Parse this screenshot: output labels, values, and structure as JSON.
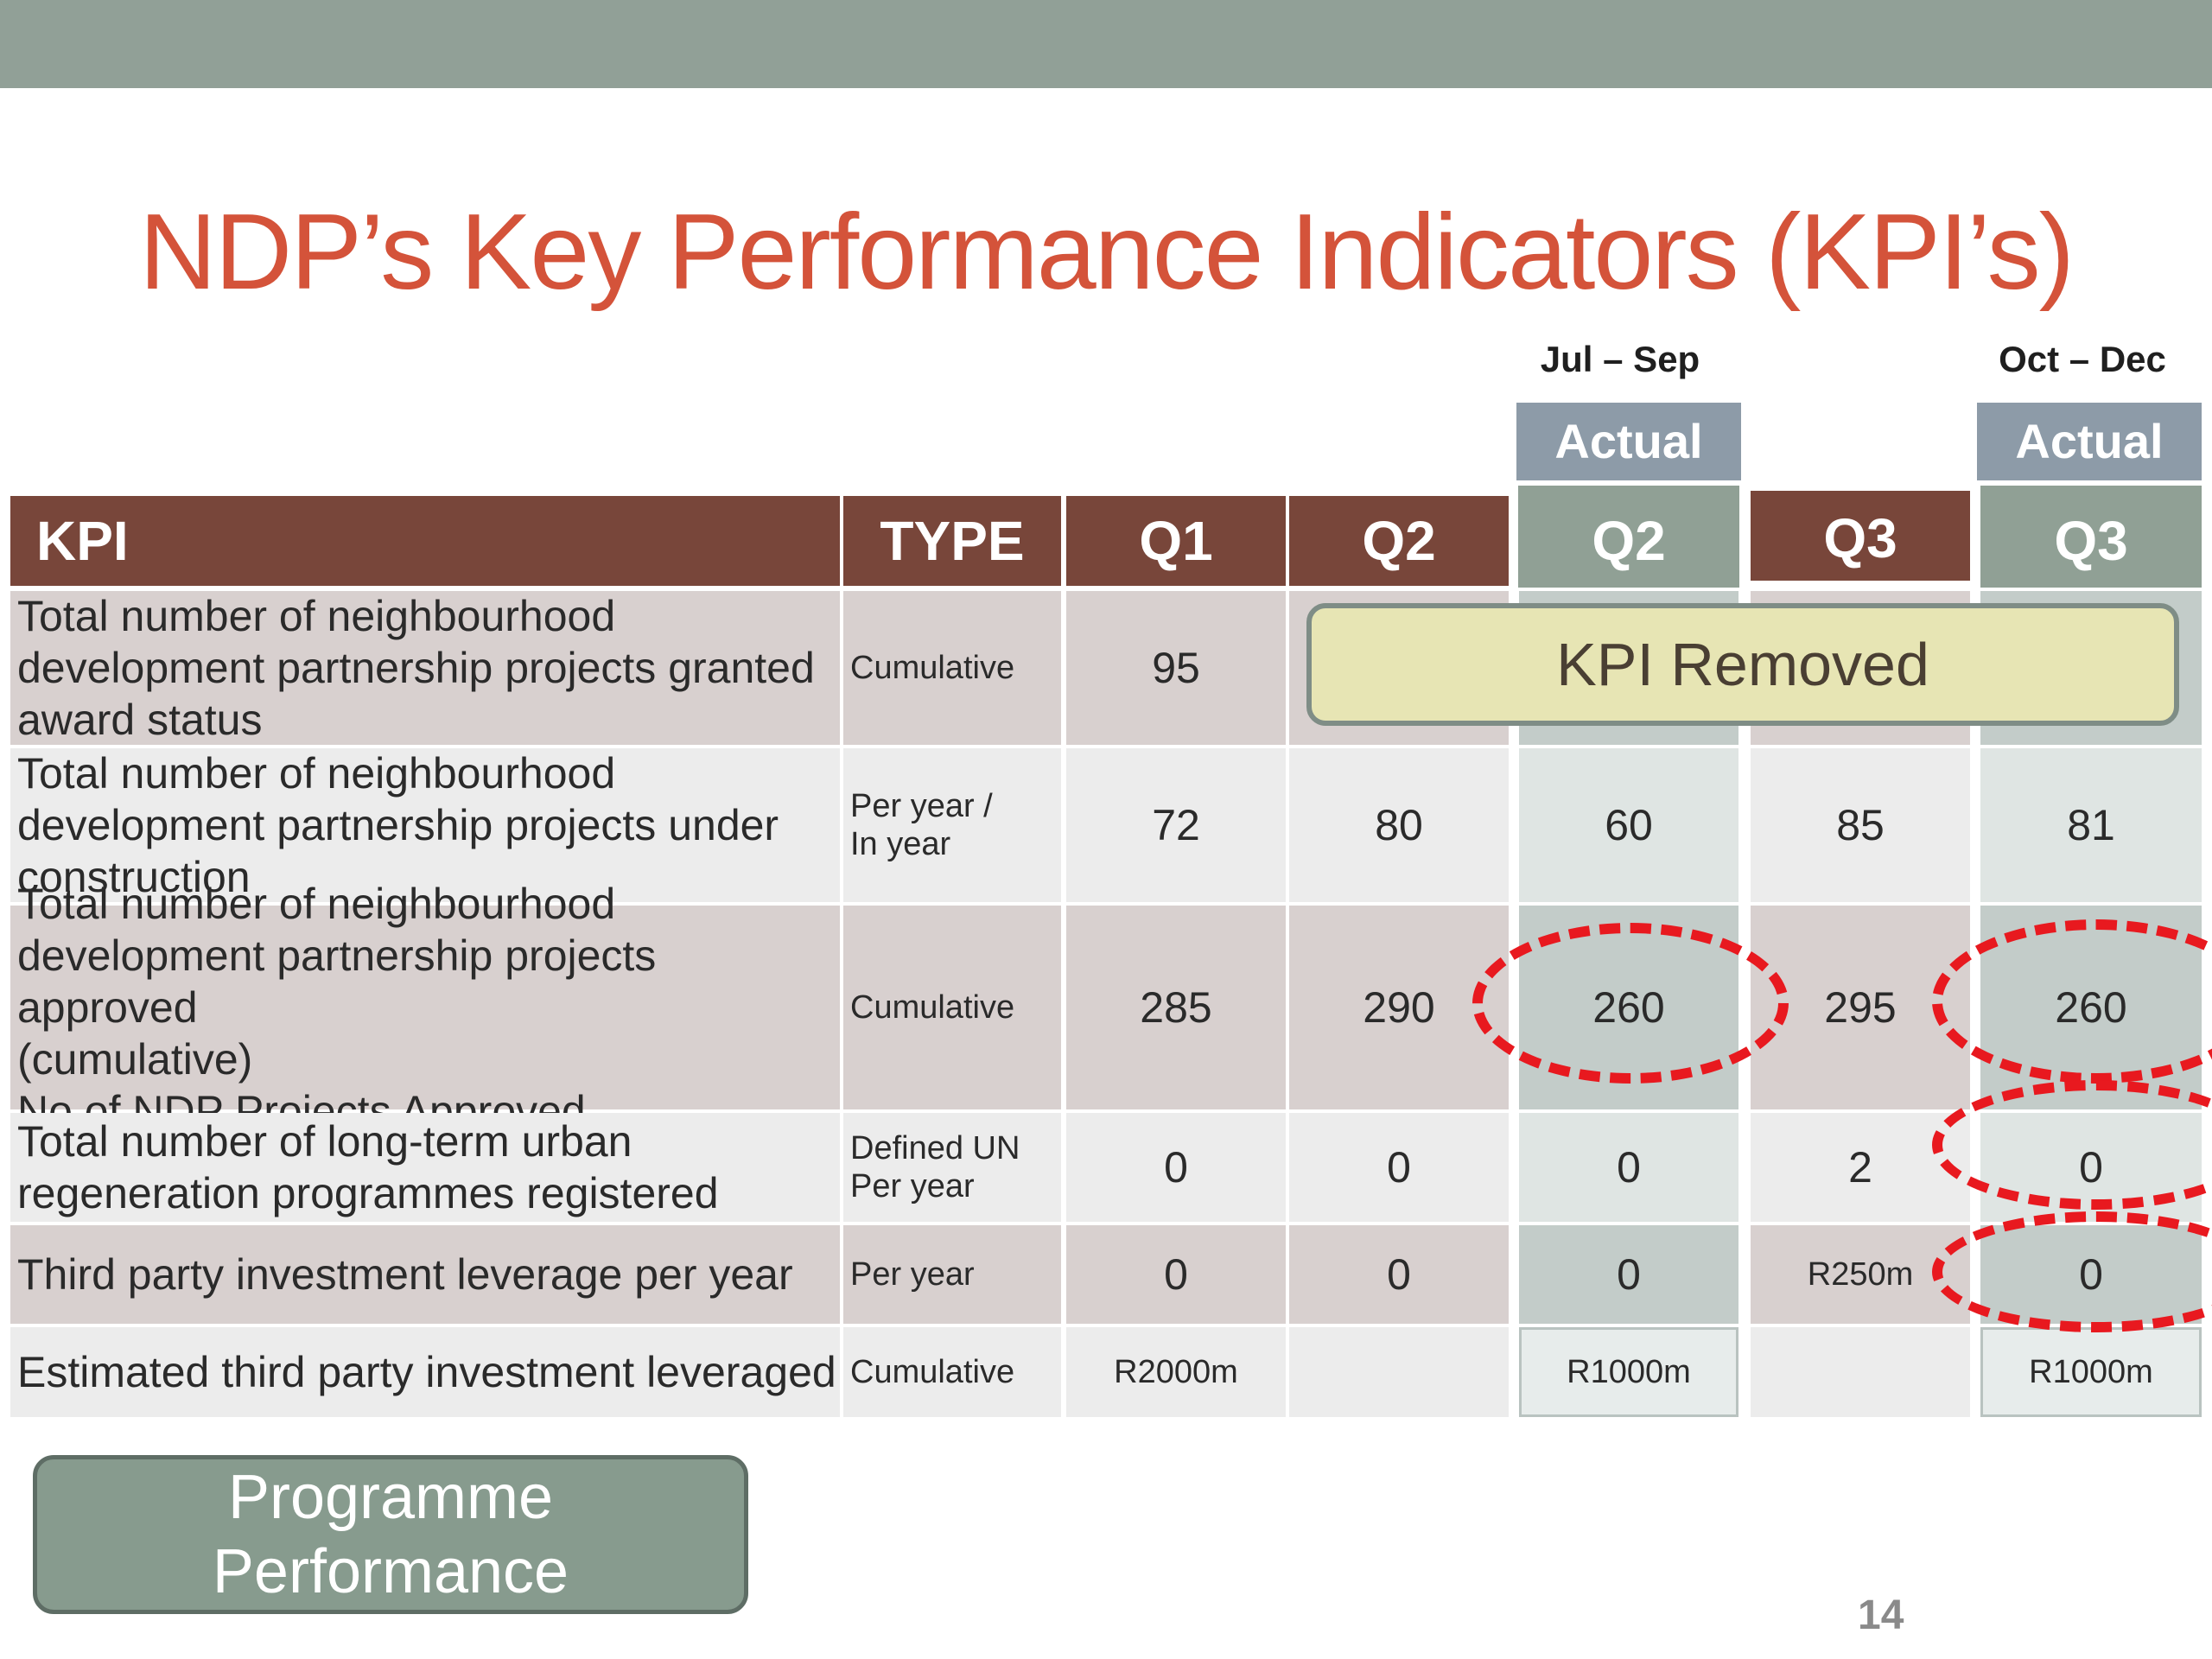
{
  "title": "NDP’s Key Performance Indicators (KPI’s)",
  "periods": {
    "q2_actual": "Jul – Sep",
    "q3_actual": "Oct – Dec"
  },
  "actual_label": "Actual",
  "headers": {
    "kpi": "KPI",
    "type": "TYPE",
    "q1": "Q1",
    "q2": "Q2",
    "q2_actual": "Q2",
    "q3": "Q3",
    "q3_actual": "Q3"
  },
  "rows": [
    {
      "kpi": [
        "Total number of neighbourhood",
        "development partnership projects granted",
        "award status"
      ],
      "type": [
        "Cumulative"
      ],
      "q1": "95",
      "q2": "",
      "q2_actual": "",
      "q3": "",
      "q3_actual": ""
    },
    {
      "kpi": [
        "Total number of neighbourhood",
        "development partnership projects under",
        "construction"
      ],
      "type": [
        "Per year /",
        "In year"
      ],
      "q1": "72",
      "q2": "80",
      "q2_actual": "60",
      "q3": "85",
      "q3_actual": "81"
    },
    {
      "kpi": [
        "Total number of neighbourhood",
        "development partnership projects approved",
        "(cumulative)",
        "No of NDP Projects Approved"
      ],
      "type": [
        "Cumulative"
      ],
      "q1": "285",
      "q2": "290",
      "q2_actual": "260",
      "q3": "295",
      "q3_actual": "260"
    },
    {
      "kpi": [
        "Total number of long-term urban",
        "regeneration programmes registered"
      ],
      "type": [
        "Defined UN",
        "Per year"
      ],
      "q1": "0",
      "q2": "0",
      "q2_actual": "0",
      "q3": "2",
      "q3_actual": "0"
    },
    {
      "kpi": [
        "Third party investment leverage per year"
      ],
      "type": [
        "Per year"
      ],
      "q1": "0",
      "q2": "0",
      "q2_actual": "0",
      "q3": "R250m",
      "q3_actual": "0"
    },
    {
      "kpi": [
        "Estimated third party investment leveraged"
      ],
      "type": [
        "Cumulative"
      ],
      "q1": "R2000m",
      "q2": "",
      "q2_actual": "R1000m",
      "q3": "",
      "q3_actual": "R1000m"
    }
  ],
  "kpi_removed": "KPI Removed",
  "programme_button": [
    "Programme",
    "Performance"
  ],
  "page_number": "14"
}
